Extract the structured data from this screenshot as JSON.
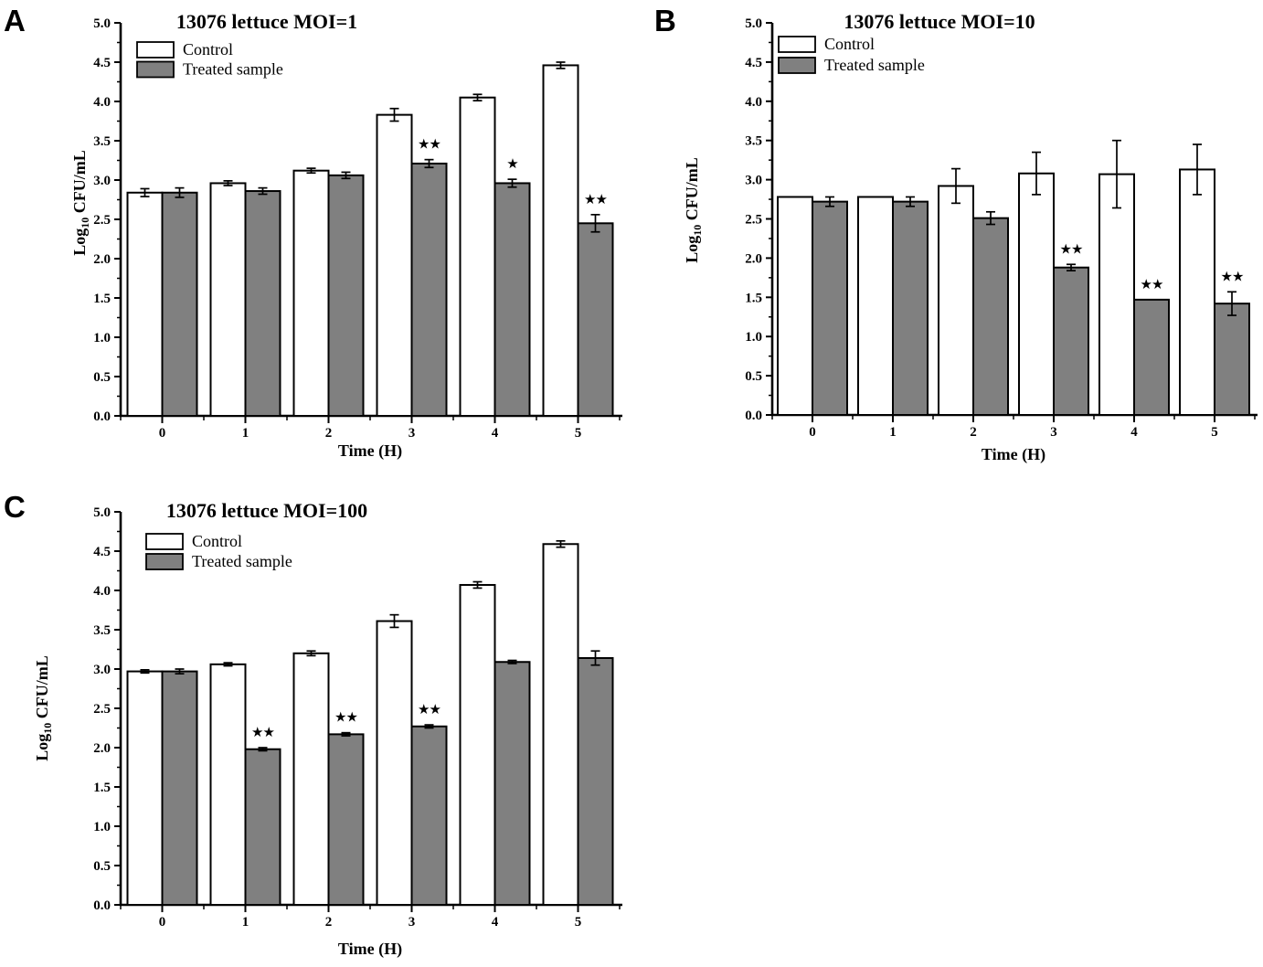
{
  "figure": {
    "panels": [
      {
        "letter": "A"
      },
      {
        "letter": "B"
      },
      {
        "letter": "C"
      }
    ],
    "colors": {
      "control_fill": "#ffffff",
      "treated_fill": "#808080",
      "stroke": "#000000"
    },
    "legend": {
      "control_label": "Control",
      "treated_label": "Treated sample"
    }
  },
  "chart_data": [
    {
      "panel": "A",
      "type": "bar",
      "title": "13076 lettuce MOI=1",
      "xlabel": "Time (H)",
      "ylabel": "Log10 CFU/mL",
      "ylim": [
        0.0,
        5.0
      ],
      "ytick_step": 0.5,
      "grid": false,
      "legend_position": "top-left",
      "categories": [
        "0",
        "1",
        "2",
        "3",
        "4",
        "5"
      ],
      "series": [
        {
          "name": "Control",
          "fill": "#ffffff",
          "values": [
            2.84,
            2.96,
            3.12,
            3.83,
            4.05,
            4.46
          ],
          "errors": [
            0.05,
            0.03,
            0.03,
            0.08,
            0.04,
            0.04
          ]
        },
        {
          "name": "Treated sample",
          "fill": "#808080",
          "values": [
            2.84,
            2.86,
            3.06,
            3.21,
            2.96,
            2.45
          ],
          "errors": [
            0.06,
            0.04,
            0.04,
            0.05,
            0.05,
            0.11
          ]
        }
      ],
      "significance": [
        "",
        "",
        "",
        "**",
        "*",
        "**"
      ]
    },
    {
      "panel": "B",
      "type": "bar",
      "title": "13076 lettuce MOI=10",
      "xlabel": "Time (H)",
      "ylabel": "Log10 CFU/mL",
      "ylim": [
        0.0,
        5.0
      ],
      "ytick_step": 0.5,
      "grid": false,
      "legend_position": "top-left",
      "categories": [
        "0",
        "1",
        "2",
        "3",
        "4",
        "5"
      ],
      "series": [
        {
          "name": "Control",
          "fill": "#ffffff",
          "values": [
            2.78,
            2.78,
            2.92,
            3.08,
            3.07,
            3.13
          ],
          "errors": [
            0,
            0,
            0.22,
            0.27,
            0.43,
            0.32
          ]
        },
        {
          "name": "Treated sample",
          "fill": "#808080",
          "values": [
            2.72,
            2.72,
            2.51,
            1.88,
            1.47,
            1.42
          ],
          "errors": [
            0.06,
            0.06,
            0.08,
            0.04,
            0,
            0.15
          ]
        }
      ],
      "significance": [
        "",
        "",
        "",
        "**",
        "**",
        "**"
      ]
    },
    {
      "panel": "C",
      "type": "bar",
      "title": "13076 lettuce MOI=100",
      "xlabel": "Time (H)",
      "ylabel": "Log10 CFU/mL",
      "ylim": [
        0.0,
        5.0
      ],
      "ytick_step": 0.5,
      "grid": false,
      "legend_position": "top-left",
      "categories": [
        "0",
        "1",
        "2",
        "3",
        "4",
        "5"
      ],
      "series": [
        {
          "name": "Control",
          "fill": "#ffffff",
          "values": [
            2.97,
            3.06,
            3.2,
            3.61,
            4.07,
            4.59
          ],
          "errors": [
            0.02,
            0.02,
            0.03,
            0.08,
            0.04,
            0.04
          ]
        },
        {
          "name": "Treated sample",
          "fill": "#808080",
          "values": [
            2.97,
            1.98,
            2.17,
            2.27,
            3.09,
            3.14
          ],
          "errors": [
            0.03,
            0.02,
            0.02,
            0.02,
            0.02,
            0.09
          ]
        }
      ],
      "significance": [
        "",
        "**",
        "**",
        "**",
        "",
        ""
      ]
    }
  ]
}
